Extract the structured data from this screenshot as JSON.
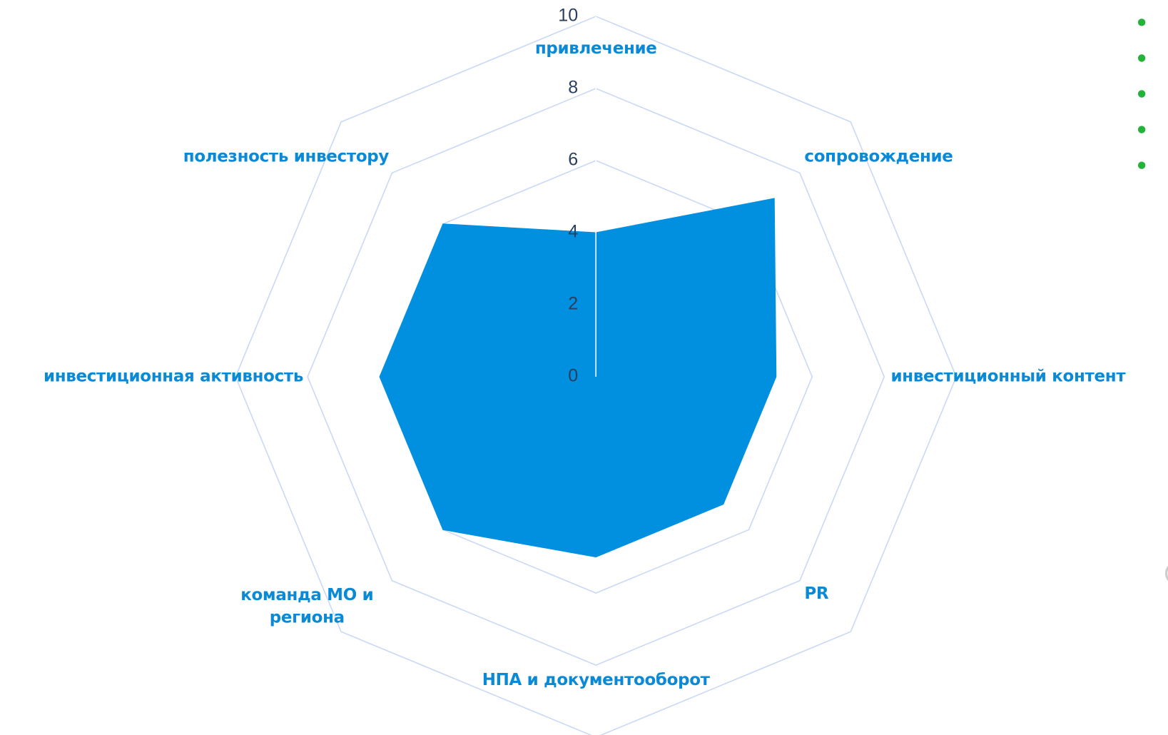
{
  "chart_data": {
    "type": "radar",
    "categories": [
      "привлечение",
      "сопровождение",
      "инвестиционный контент",
      "PR",
      "НПА и документооборот",
      "команда МО и региона",
      "инвестиционная активность",
      "полезность инвестору"
    ],
    "values": [
      4,
      7,
      5,
      5,
      5,
      6,
      6,
      6
    ],
    "color": "#0090df",
    "rlim": [
      0,
      10
    ],
    "rticks": [
      0,
      2,
      4,
      6,
      8,
      10
    ],
    "grid": true
  }
}
